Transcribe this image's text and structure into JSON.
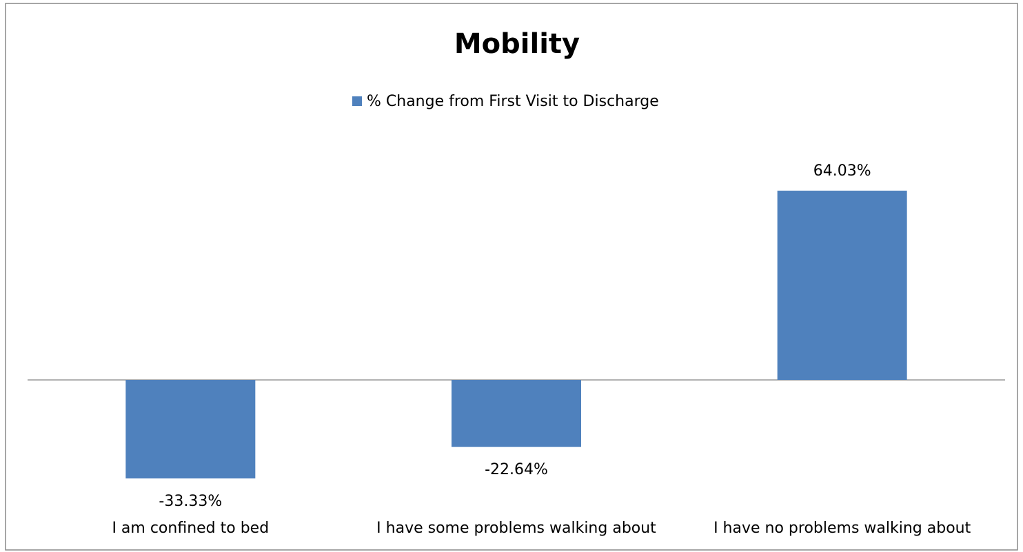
{
  "chart_data": {
    "type": "bar",
    "title": "Mobility",
    "categories": [
      "I am confined to bed",
      "I have some problems walking about",
      "I have no problems walking about"
    ],
    "series": [
      {
        "name": "% Change from First Visit to Discharge",
        "color": "#4f81bd",
        "values": [
          -33.33,
          -22.64,
          64.03
        ],
        "value_labels": [
          "-33.33%",
          "-22.64%",
          "64.03%"
        ]
      }
    ],
    "legend": "top"
  }
}
